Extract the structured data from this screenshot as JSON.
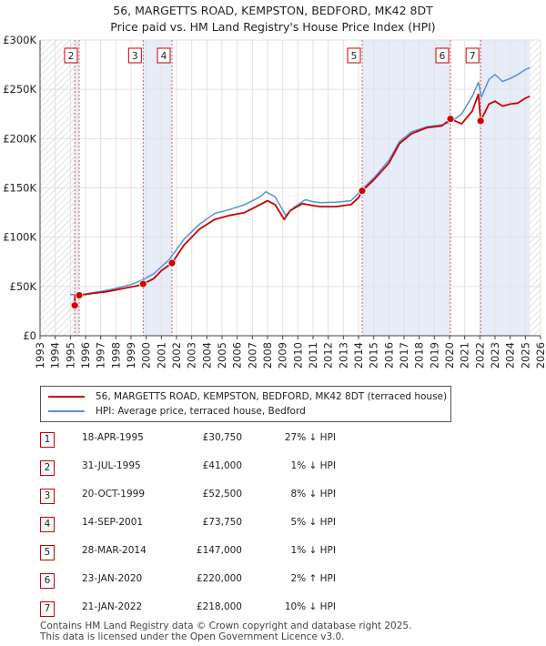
{
  "title_line1": "56, MARGETTS ROAD, KEMPSTON, BEDFORD, MK42 8DT",
  "title_line2": "Price paid vs. HM Land Registry's House Price Index (HPI)",
  "colors": {
    "property": "#cc0000",
    "hpi": "#5b8fd6",
    "shade": "#dde6f5",
    "badge": "#cc0000"
  },
  "chart_data": {
    "type": "line",
    "xlim": [
      1993,
      2026
    ],
    "ylim": [
      0,
      300000
    ],
    "y_ticks": [
      0,
      50000,
      100000,
      150000,
      200000,
      250000,
      300000
    ],
    "y_tick_labels": [
      "£0",
      "£50K",
      "£100K",
      "£150K",
      "£200K",
      "£250K",
      "£300K"
    ],
    "x_ticks": [
      "1993",
      "1994",
      "1995",
      "1996",
      "1997",
      "1998",
      "1999",
      "2000",
      "2001",
      "2002",
      "2003",
      "2004",
      "2005",
      "2006",
      "2007",
      "2008",
      "2009",
      "2010",
      "2011",
      "2012",
      "2013",
      "2014",
      "2015",
      "2016",
      "2017",
      "2018",
      "2019",
      "2020",
      "2021",
      "2022",
      "2023",
      "2024",
      "2025",
      "2026"
    ],
    "hatched_ranges": [
      [
        1993,
        1995.29
      ],
      [
        2025.3,
        2026
      ]
    ],
    "shaded_ranges": [
      [
        1995.29,
        1995.58
      ],
      [
        1999.8,
        2001.7
      ],
      [
        2014.24,
        2020.06
      ],
      [
        2022.05,
        2025.3
      ]
    ],
    "series": [
      {
        "name": "56, MARGETTS ROAD, KEMPSTON, BEDFORD, MK42 8DT (terraced house)",
        "x": [
          1995.29,
          1995.3,
          1995.58,
          1996.5,
          1997.5,
          1998.5,
          1999.5,
          1999.8,
          2000.5,
          2001.0,
          2001.7,
          2002.5,
          2003.5,
          2004.5,
          2005.5,
          2006.5,
          2007.5,
          2008.0,
          2008.5,
          2009.1,
          2009.5,
          2010.3,
          2011.0,
          2011.5,
          2012.5,
          2013.5,
          2014.0,
          2014.24,
          2015.0,
          2016.0,
          2016.7,
          2017.5,
          2018.5,
          2019.5,
          2020.06,
          2020.8,
          2021.5,
          2021.9,
          2022.05,
          2022.6,
          2023.0,
          2023.5,
          2024.0,
          2024.5,
          2025.0,
          2025.3
        ],
        "values": [
          30750,
          41000,
          41000,
          43000,
          45000,
          48000,
          51000,
          52500,
          58000,
          66000,
          73750,
          92000,
          108000,
          118000,
          122000,
          125000,
          133000,
          137000,
          133000,
          118000,
          127000,
          134000,
          132000,
          131000,
          131000,
          133000,
          140000,
          147000,
          158000,
          175000,
          195000,
          205000,
          211000,
          213000,
          220000,
          215000,
          228000,
          245000,
          218000,
          235000,
          238000,
          233000,
          235000,
          236000,
          241000,
          243000
        ]
      },
      {
        "name": "HPI: Average price, terraced house, Bedford",
        "x": [
          1995.0,
          1995.3,
          1996.0,
          1997.0,
          1998.0,
          1999.0,
          1999.8,
          2000.5,
          2001.5,
          2002.5,
          2003.5,
          2004.5,
          2005.5,
          2006.5,
          2007.5,
          2007.9,
          2008.5,
          2009.2,
          2009.8,
          2010.5,
          2011.0,
          2011.5,
          2012.5,
          2013.5,
          2014.2,
          2015.0,
          2016.0,
          2016.7,
          2017.5,
          2018.5,
          2019.5,
          2020.1,
          2020.8,
          2021.5,
          2021.9,
          2022.1,
          2022.6,
          2023.0,
          2023.5,
          2024.0,
          2024.5,
          2025.0,
          2025.3
        ],
        "values": [
          42000,
          41500,
          42500,
          45000,
          48000,
          52000,
          57000,
          63000,
          77000,
          98000,
          113000,
          124000,
          128000,
          133000,
          141000,
          146000,
          141000,
          122000,
          131000,
          138000,
          136000,
          135000,
          135500,
          137000,
          148000,
          160000,
          178000,
          197000,
          207000,
          212000,
          214000,
          217000,
          225000,
          243000,
          257000,
          242000,
          260000,
          265000,
          258000,
          261000,
          265000,
          270000,
          272000
        ]
      }
    ],
    "sale_points": [
      {
        "label": "1",
        "x": 1995.29,
        "value": 30750
      },
      {
        "label": "2",
        "x": 1995.58,
        "value": 41000
      },
      {
        "label": "3",
        "x": 1999.8,
        "value": 52500
      },
      {
        "label": "4",
        "x": 2001.7,
        "value": 73750
      },
      {
        "label": "5",
        "x": 2014.24,
        "value": 147000
      },
      {
        "label": "6",
        "x": 2020.06,
        "value": 220000
      },
      {
        "label": "7",
        "x": 2022.05,
        "value": 218000
      }
    ],
    "chart_boxes": [
      "2",
      "3",
      "4",
      "5",
      "6",
      "7"
    ]
  },
  "legend": {
    "property_label": "56, MARGETTS ROAD, KEMPSTON, BEDFORD, MK42 8DT (terraced house)",
    "hpi_label": "HPI: Average price, terraced house, Bedford"
  },
  "transactions": [
    {
      "num": "1",
      "date": "18-APR-1995",
      "price": "£30,750",
      "hpi": "27% ↓ HPI"
    },
    {
      "num": "2",
      "date": "31-JUL-1995",
      "price": "£41,000",
      "hpi": "1% ↓ HPI"
    },
    {
      "num": "3",
      "date": "20-OCT-1999",
      "price": "£52,500",
      "hpi": "8% ↓ HPI"
    },
    {
      "num": "4",
      "date": "14-SEP-2001",
      "price": "£73,750",
      "hpi": "5% ↓ HPI"
    },
    {
      "num": "5",
      "date": "28-MAR-2014",
      "price": "£147,000",
      "hpi": "1% ↓ HPI"
    },
    {
      "num": "6",
      "date": "23-JAN-2020",
      "price": "£220,000",
      "hpi": "2% ↑ HPI"
    },
    {
      "num": "7",
      "date": "21-JAN-2022",
      "price": "£218,000",
      "hpi": "10% ↓ HPI"
    }
  ],
  "footer": {
    "line1": "Contains HM Land Registry data © Crown copyright and database right 2025.",
    "line2": "This data is licensed under the Open Government Licence v3.0."
  }
}
